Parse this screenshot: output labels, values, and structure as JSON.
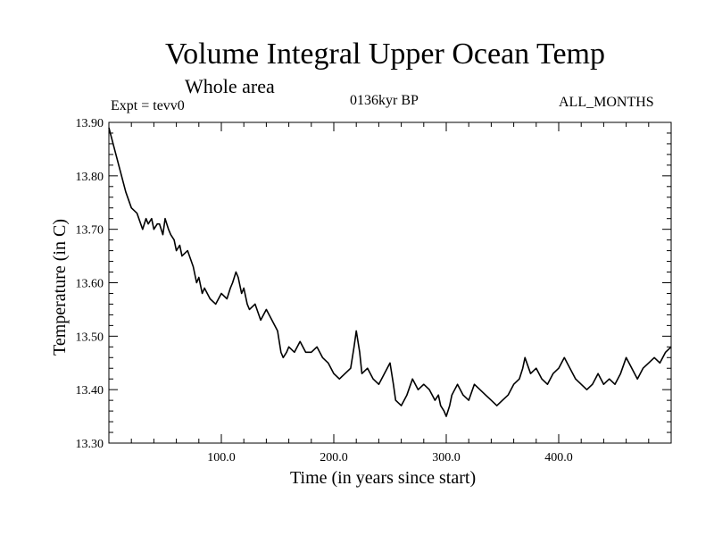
{
  "chart_data": {
    "type": "line",
    "title": "Volume Integral Upper Ocean Temp",
    "subtitle": "Whole area",
    "expt": "Expt = tevv0",
    "period": "0136kyr BP",
    "months": "ALL_MONTHS",
    "xlabel": "Time (in years since start)",
    "ylabel": "Temperature (in C)",
    "xlim": [
      0,
      500
    ],
    "ylim": [
      13.3,
      13.9
    ],
    "x_ticks": [
      100,
      200,
      300,
      400
    ],
    "x_tick_labels": [
      "100.0",
      "200.0",
      "300.0",
      "400.0"
    ],
    "y_ticks": [
      13.3,
      13.4,
      13.5,
      13.6,
      13.7,
      13.8,
      13.9
    ],
    "y_tick_labels": [
      "13.30",
      "13.40",
      "13.50",
      "13.60",
      "13.70",
      "13.80",
      "13.90"
    ],
    "grid": false,
    "series": [
      {
        "x": [
          0,
          5,
          10,
          15,
          20,
          25,
          30,
          33,
          35,
          38,
          40,
          43,
          45,
          48,
          50,
          53,
          55,
          58,
          60,
          63,
          65,
          70,
          75,
          78,
          80,
          83,
          85,
          90,
          95,
          100,
          105,
          108,
          110,
          113,
          115,
          118,
          120,
          123,
          125,
          130,
          135,
          140,
          145,
          150,
          153,
          155,
          158,
          160,
          165,
          170,
          175,
          180,
          185,
          190,
          195,
          200,
          205,
          210,
          215,
          218,
          220,
          223,
          225,
          230,
          235,
          240,
          245,
          250,
          253,
          255,
          260,
          265,
          270,
          275,
          280,
          285,
          290,
          293,
          295,
          298,
          300,
          303,
          305,
          310,
          315,
          320,
          325,
          330,
          335,
          340,
          345,
          350,
          355,
          360,
          365,
          368,
          370,
          375,
          380,
          385,
          390,
          395,
          400,
          405,
          410,
          415,
          420,
          425,
          430,
          435,
          440,
          445,
          450,
          455,
          460,
          465,
          470,
          475,
          480,
          485,
          490,
          495,
          500
        ],
        "y": [
          13.89,
          13.85,
          13.81,
          13.77,
          13.74,
          13.73,
          13.7,
          13.72,
          13.71,
          13.72,
          13.7,
          13.71,
          13.71,
          13.69,
          13.72,
          13.7,
          13.69,
          13.68,
          13.66,
          13.67,
          13.65,
          13.66,
          13.63,
          13.6,
          13.61,
          13.58,
          13.59,
          13.57,
          13.56,
          13.58,
          13.57,
          13.59,
          13.6,
          13.62,
          13.61,
          13.58,
          13.59,
          13.56,
          13.55,
          13.56,
          13.53,
          13.55,
          13.53,
          13.51,
          13.47,
          13.46,
          13.47,
          13.48,
          13.47,
          13.49,
          13.47,
          13.47,
          13.48,
          13.46,
          13.45,
          13.43,
          13.42,
          13.43,
          13.44,
          13.48,
          13.51,
          13.47,
          13.43,
          13.44,
          13.42,
          13.41,
          13.43,
          13.45,
          13.41,
          13.38,
          13.37,
          13.39,
          13.42,
          13.4,
          13.41,
          13.4,
          13.38,
          13.39,
          13.37,
          13.36,
          13.35,
          13.37,
          13.39,
          13.41,
          13.39,
          13.38,
          13.41,
          13.4,
          13.39,
          13.38,
          13.37,
          13.38,
          13.39,
          13.41,
          13.42,
          13.44,
          13.46,
          13.43,
          13.44,
          13.42,
          13.41,
          13.43,
          13.44,
          13.46,
          13.44,
          13.42,
          13.41,
          13.4,
          13.41,
          13.43,
          13.41,
          13.42,
          13.41,
          13.43,
          13.46,
          13.44,
          13.42,
          13.44,
          13.45,
          13.46,
          13.45,
          13.47,
          13.48
        ]
      }
    ]
  }
}
